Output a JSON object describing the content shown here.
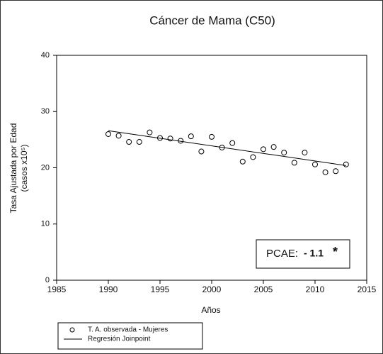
{
  "chart_data": {
    "type": "scatter",
    "title": "Cáncer de Mama (C50)",
    "xlabel": "Años",
    "ylabel": [
      "Tasa Ajustada por Edad",
      "(casos x10⁵)"
    ],
    "xlim": [
      1985,
      2015
    ],
    "xticks": [
      1985,
      1990,
      1995,
      2000,
      2005,
      2010,
      2015
    ],
    "ylim": [
      0,
      40
    ],
    "yticks": [
      0,
      10,
      20,
      30,
      40
    ],
    "annotation": {
      "label": "PCAE:",
      "value": "- 1.1",
      "mark": "*"
    },
    "series": [
      {
        "name": "T. A. observada - Mujeres",
        "mode": "markers",
        "color": "#000000",
        "x": [
          1990,
          1991,
          1992,
          1993,
          1994,
          1995,
          1996,
          1997,
          1998,
          1999,
          2000,
          2001,
          2002,
          2003,
          2004,
          2005,
          2006,
          2007,
          2008,
          2009,
          2010,
          2011,
          2012,
          2013
        ],
        "values": [
          26.0,
          25.7,
          24.6,
          24.6,
          26.3,
          25.3,
          25.2,
          24.8,
          25.6,
          22.9,
          25.5,
          23.6,
          24.4,
          21.1,
          21.9,
          23.3,
          23.7,
          22.7,
          20.9,
          22.7,
          20.6,
          19.2,
          19.4,
          20.6
        ]
      },
      {
        "name": "Regresión Joinpoint",
        "mode": "line",
        "color": "#000000",
        "x": [
          1990,
          2013
        ],
        "values": [
          26.6,
          20.4
        ]
      }
    ]
  }
}
